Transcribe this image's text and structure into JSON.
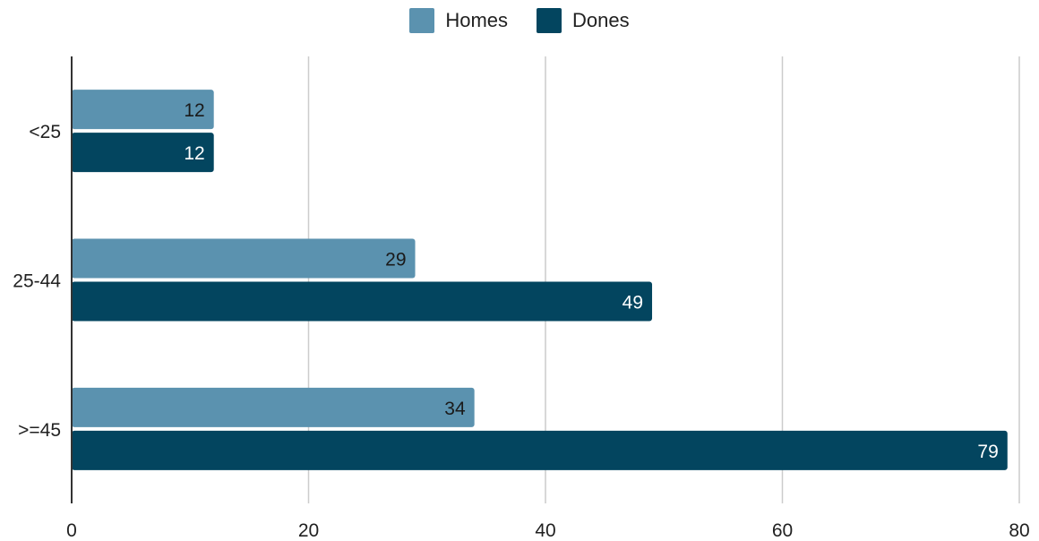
{
  "chart_data": {
    "type": "bar",
    "orientation": "horizontal",
    "categories": [
      "<25",
      "25-44",
      ">=45"
    ],
    "series": [
      {
        "name": "Homes",
        "values": [
          12,
          29,
          34
        ],
        "color": "#5b92af",
        "label_color": "#1a1a1a"
      },
      {
        "name": "Dones",
        "values": [
          12,
          49,
          79
        ],
        "color": "#03455f",
        "label_color": "#ffffff"
      }
    ],
    "xlim": [
      0,
      80
    ],
    "xticks": [
      0,
      20,
      40,
      60,
      80
    ],
    "grid": true,
    "legend": "top-center",
    "title": "",
    "xlabel": "",
    "ylabel": ""
  }
}
